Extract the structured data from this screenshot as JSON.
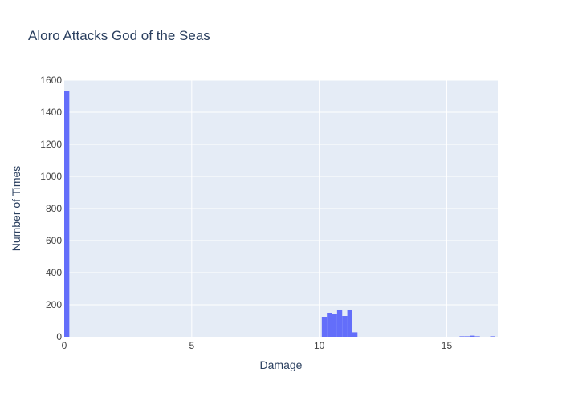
{
  "chart_data": {
    "type": "bar",
    "title": "Aloro Attacks God of the Seas",
    "xlabel": "Damage",
    "ylabel": "Number of Times",
    "xlim": [
      0,
      17
    ],
    "ylim": [
      0,
      1600
    ],
    "xticks": [
      0,
      5,
      10,
      15
    ],
    "yticks": [
      0,
      200,
      400,
      600,
      800,
      1000,
      1200,
      1400,
      1600
    ],
    "grid": true,
    "bar_width": 0.2,
    "bars": [
      {
        "x": 0.1,
        "y": 1535
      },
      {
        "x": 10.2,
        "y": 125
      },
      {
        "x": 10.4,
        "y": 150
      },
      {
        "x": 10.6,
        "y": 145
      },
      {
        "x": 10.8,
        "y": 165
      },
      {
        "x": 11.0,
        "y": 130
      },
      {
        "x": 11.2,
        "y": 165
      },
      {
        "x": 11.4,
        "y": 28
      },
      {
        "x": 15.6,
        "y": 3
      },
      {
        "x": 15.8,
        "y": 3
      },
      {
        "x": 16.0,
        "y": 7
      },
      {
        "x": 16.2,
        "y": 3
      },
      {
        "x": 16.8,
        "y": 3
      }
    ],
    "colors": {
      "bar": "#636efa",
      "plot_bg": "#e5ecf6",
      "grid": "#ffffff",
      "text": "#2a3f5f",
      "tick_text": "#444444"
    }
  }
}
